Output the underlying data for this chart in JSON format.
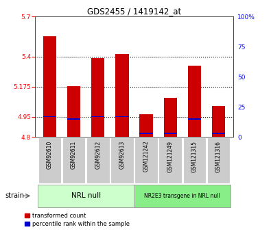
{
  "title": "GDS2455 / 1419142_at",
  "samples": [
    "GSM92610",
    "GSM92611",
    "GSM92612",
    "GSM92613",
    "GSM121242",
    "GSM121249",
    "GSM121315",
    "GSM121316"
  ],
  "red_values": [
    5.55,
    5.18,
    5.39,
    5.42,
    4.97,
    5.09,
    5.33,
    5.03
  ],
  "blue_values": [
    4.951,
    4.933,
    4.951,
    4.951,
    4.825,
    4.826,
    4.933,
    4.827
  ],
  "ylim_left": [
    4.8,
    5.7
  ],
  "ylim_right": [
    0,
    100
  ],
  "yticks_left": [
    4.8,
    4.95,
    5.175,
    5.4,
    5.7
  ],
  "ytick_labels_left": [
    "4.8",
    "4.95",
    "5.175",
    "5.4",
    "5.7"
  ],
  "yticks_right": [
    0,
    25,
    50,
    75,
    100
  ],
  "ytick_labels_right": [
    "0",
    "25",
    "50",
    "75",
    "100%"
  ],
  "hlines": [
    4.95,
    5.175,
    5.4
  ],
  "group1_label": "NRL null",
  "group2_label": "NR2E3 transgene in NRL null",
  "group1_indices": [
    0,
    1,
    2,
    3
  ],
  "group2_indices": [
    4,
    5,
    6,
    7
  ],
  "bar_color_red": "#cc0000",
  "bar_color_blue": "#0000cc",
  "group1_bg": "#ccffcc",
  "group2_bg": "#88ee88",
  "sample_bg": "#cccccc",
  "bar_width": 0.55,
  "legend_red": "transformed count",
  "legend_blue": "percentile rank within the sample",
  "strain_label": "strain",
  "fig_width": 3.95,
  "fig_height": 3.45,
  "blue_bar_height": 0.008
}
